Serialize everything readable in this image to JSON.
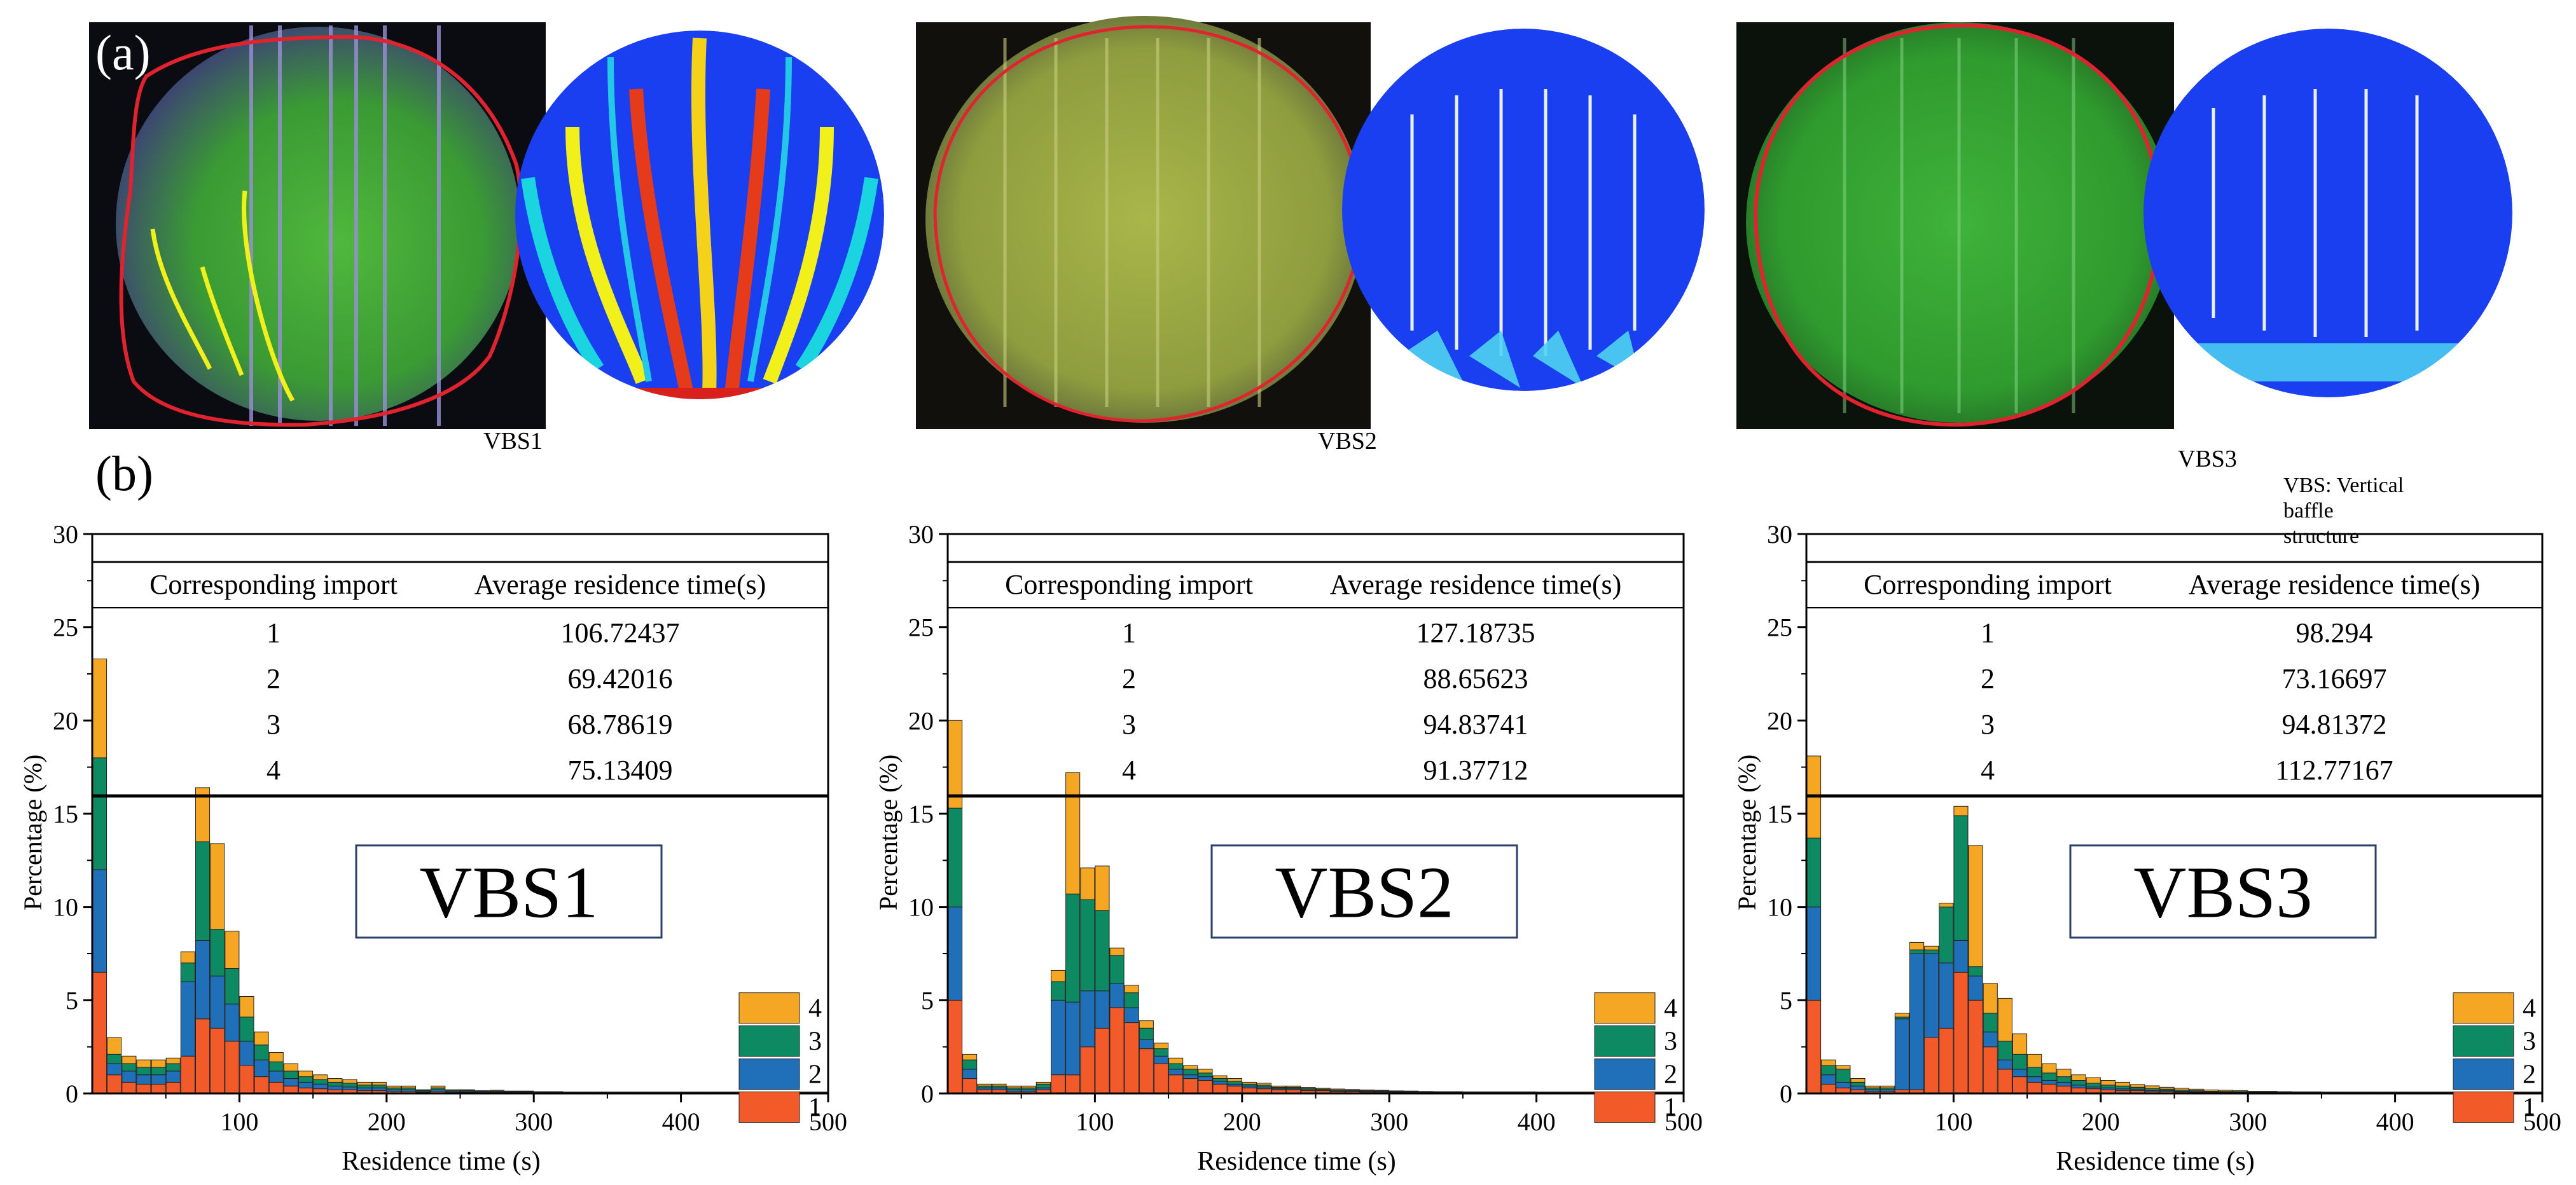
{
  "panel_a_label": "(a)",
  "panel_b_label": "(b)",
  "photo_captions": [
    "VBS1",
    "VBS2",
    "VBS3"
  ],
  "footnote": "VBS: Vertical baffle structure",
  "colors": {
    "series_1": "#f25a29",
    "series_2": "#1f70b8",
    "series_3": "#0e8a63",
    "series_4": "#f5a623",
    "photo_bg": "#0b0b12",
    "photo_green": "#3fae3a",
    "photo_outline_red": "#e0232e",
    "photo_streak_yellow": "#f2f01a",
    "sim_blue": "#1a3ff0"
  },
  "chart_data": [
    {
      "type": "bar",
      "stacked": true,
      "name": "VBS1",
      "box_label": "VBS1",
      "xlabel": "Residence time (s)",
      "ylabel": "Percentage (%)",
      "xlim": [
        0,
        500
      ],
      "ylim": [
        0,
        30
      ],
      "xticks": [
        100,
        200,
        300,
        400,
        500
      ],
      "yticks": [
        0,
        5,
        10,
        15,
        20,
        25,
        30
      ],
      "legend": [
        "4",
        "3",
        "2",
        "1"
      ],
      "legend_position": "bottom-right",
      "table": {
        "headers": [
          "Corresponding import",
          "Average residence time(s)"
        ],
        "rows": [
          [
            "1",
            "106.72437"
          ],
          [
            "2",
            "69.42016"
          ],
          [
            "3",
            "68.78619"
          ],
          [
            "4",
            "75.13409"
          ]
        ]
      },
      "bin_width": 10,
      "x": [
        5,
        15,
        25,
        35,
        45,
        55,
        65,
        75,
        85,
        95,
        105,
        115,
        125,
        135,
        145,
        155,
        165,
        175,
        185,
        195,
        205,
        215,
        225,
        235,
        245,
        255,
        265,
        275,
        285,
        295,
        305,
        315,
        325,
        335,
        345,
        355,
        365,
        375,
        385,
        395,
        405,
        415,
        425,
        435,
        445,
        455,
        465,
        475,
        485,
        495
      ],
      "series": [
        {
          "name": "1",
          "values": [
            6.5,
            1.0,
            0.6,
            0.5,
            0.5,
            0.6,
            2.0,
            4.0,
            3.5,
            2.8,
            1.5,
            0.9,
            0.6,
            0.4,
            0.3,
            0.25,
            0.2,
            0.2,
            0.15,
            0.15,
            0.1,
            0.1,
            0.06,
            0.1,
            0.05,
            0.06,
            0.04,
            0.05,
            0.04,
            0.04,
            0.03,
            0.03,
            0.02,
            0.02,
            0.02,
            0.02,
            0.02,
            0.02,
            0.02,
            0.02,
            0.02,
            0.02,
            0.02,
            0.02,
            0.02,
            0.02,
            0.02,
            0.02,
            0.02,
            0.02
          ]
        },
        {
          "name": "2",
          "values": [
            5.5,
            0.6,
            0.6,
            0.5,
            0.5,
            0.6,
            4.0,
            4.2,
            2.8,
            2.0,
            1.3,
            0.9,
            0.6,
            0.4,
            0.3,
            0.25,
            0.2,
            0.15,
            0.15,
            0.15,
            0.1,
            0.1,
            0.05,
            0.1,
            0.05,
            0.05,
            0.04,
            0.04,
            0.03,
            0.03,
            0.02,
            0.02,
            0.02,
            0.02,
            0.02,
            0.02,
            0.02,
            0.02,
            0.02,
            0.02,
            0.02,
            0.02,
            0.02,
            0.02,
            0.02,
            0.02,
            0.02,
            0.02,
            0.02,
            0.02
          ]
        },
        {
          "name": "3",
          "values": [
            6.0,
            0.5,
            0.4,
            0.4,
            0.4,
            0.4,
            1.0,
            5.3,
            2.5,
            1.9,
            1.3,
            0.8,
            0.5,
            0.4,
            0.3,
            0.25,
            0.2,
            0.2,
            0.15,
            0.15,
            0.1,
            0.1,
            0.05,
            0.1,
            0.05,
            0.05,
            0.04,
            0.04,
            0.03,
            0.03,
            0.02,
            0.02,
            0.02,
            0.02,
            0.02,
            0.02,
            0.02,
            0.02,
            0.02,
            0.02,
            0.02,
            0.02,
            0.02,
            0.02,
            0.02,
            0.02,
            0.02,
            0.02,
            0.02,
            0.02
          ]
        },
        {
          "name": "4",
          "values": [
            5.3,
            0.9,
            0.4,
            0.4,
            0.4,
            0.3,
            0.6,
            2.9,
            4.6,
            2.0,
            1.1,
            0.7,
            0.5,
            0.4,
            0.3,
            0.25,
            0.2,
            0.2,
            0.15,
            0.15,
            0.1,
            0.1,
            0.04,
            0.1,
            0.05,
            0.04,
            0.03,
            0.04,
            0.03,
            0.03,
            0.03,
            0.03,
            0.02,
            0.02,
            0.02,
            0.02,
            0.02,
            0.02,
            0.02,
            0.02,
            0.02,
            0.02,
            0.02,
            0.02,
            0.02,
            0.02,
            0.02,
            0.02,
            0.02,
            0.02
          ]
        }
      ]
    },
    {
      "type": "bar",
      "stacked": true,
      "name": "VBS2",
      "box_label": "VBS2",
      "xlabel": "Residence time (s)",
      "ylabel": "Percentage (%)",
      "xlim": [
        0,
        500
      ],
      "ylim": [
        0,
        30
      ],
      "xticks": [
        100,
        200,
        300,
        400,
        500
      ],
      "yticks": [
        0,
        5,
        10,
        15,
        20,
        25,
        30
      ],
      "legend": [
        "4",
        "3",
        "2",
        "1"
      ],
      "legend_position": "bottom-right",
      "table": {
        "headers": [
          "Corresponding import",
          "Average residence time(s)"
        ],
        "rows": [
          [
            "1",
            "127.18735"
          ],
          [
            "2",
            "88.65623"
          ],
          [
            "3",
            "94.83741"
          ],
          [
            "4",
            "91.37712"
          ]
        ]
      },
      "bin_width": 10,
      "x": [
        5,
        15,
        25,
        35,
        45,
        55,
        65,
        75,
        85,
        95,
        105,
        115,
        125,
        135,
        145,
        155,
        165,
        175,
        185,
        195,
        205,
        215,
        225,
        235,
        245,
        255,
        265,
        275,
        285,
        295,
        305,
        315,
        325,
        335,
        345,
        355,
        365,
        375,
        385,
        395,
        405,
        415,
        425,
        435,
        445,
        455,
        465,
        475,
        485,
        495
      ],
      "series": [
        {
          "name": "1",
          "values": [
            5.0,
            0.8,
            0.2,
            0.2,
            0.1,
            0.1,
            0.2,
            1.0,
            1.0,
            2.5,
            3.5,
            4.6,
            3.8,
            2.4,
            1.6,
            1.0,
            0.8,
            0.7,
            0.5,
            0.4,
            0.3,
            0.25,
            0.2,
            0.2,
            0.15,
            0.15,
            0.1,
            0.1,
            0.08,
            0.08,
            0.06,
            0.05,
            0.05,
            0.04,
            0.04,
            0.03,
            0.03,
            0.03,
            0.03,
            0.03,
            0.02,
            0.02,
            0.02,
            0.02,
            0.02,
            0.02,
            0.02,
            0.02,
            0.02,
            0.02
          ]
        },
        {
          "name": "2",
          "values": [
            5.0,
            0.5,
            0.1,
            0.1,
            0.1,
            0.1,
            0.1,
            4.0,
            3.9,
            3.0,
            2.0,
            1.3,
            0.8,
            0.5,
            0.4,
            0.3,
            0.2,
            0.2,
            0.15,
            0.1,
            0.1,
            0.1,
            0.05,
            0.05,
            0.05,
            0.04,
            0.04,
            0.03,
            0.03,
            0.03,
            0.02,
            0.02,
            0.02,
            0.02,
            0.02,
            0.02,
            0.02,
            0.02,
            0.02,
            0.02,
            0.02,
            0.02,
            0.02,
            0.02,
            0.02,
            0.02,
            0.02,
            0.02,
            0.02,
            0.02
          ]
        },
        {
          "name": "3",
          "values": [
            5.3,
            0.5,
            0.1,
            0.1,
            0.1,
            0.1,
            0.2,
            1.0,
            5.8,
            4.9,
            4.3,
            1.5,
            0.8,
            0.6,
            0.4,
            0.3,
            0.3,
            0.2,
            0.15,
            0.15,
            0.1,
            0.1,
            0.08,
            0.08,
            0.06,
            0.05,
            0.05,
            0.04,
            0.04,
            0.03,
            0.03,
            0.03,
            0.02,
            0.02,
            0.02,
            0.02,
            0.02,
            0.02,
            0.02,
            0.02,
            0.02,
            0.02,
            0.02,
            0.02,
            0.02,
            0.02,
            0.02,
            0.02,
            0.02,
            0.02
          ]
        },
        {
          "name": "4",
          "values": [
            4.7,
            0.3,
            0.1,
            0.1,
            0.1,
            0.1,
            0.1,
            0.6,
            6.5,
            1.7,
            2.4,
            0.4,
            0.4,
            0.4,
            0.3,
            0.3,
            0.2,
            0.2,
            0.15,
            0.15,
            0.1,
            0.1,
            0.07,
            0.07,
            0.06,
            0.05,
            0.05,
            0.04,
            0.04,
            0.03,
            0.03,
            0.03,
            0.02,
            0.02,
            0.02,
            0.02,
            0.02,
            0.02,
            0.02,
            0.02,
            0.02,
            0.02,
            0.02,
            0.02,
            0.02,
            0.02,
            0.02,
            0.02,
            0.02,
            0.02
          ]
        }
      ]
    },
    {
      "type": "bar",
      "stacked": true,
      "name": "VBS3",
      "box_label": "VBS3",
      "xlabel": "Residence time (s)",
      "ylabel": "Percentage (%)",
      "xlim": [
        0,
        500
      ],
      "ylim": [
        0,
        30
      ],
      "xticks": [
        100,
        200,
        300,
        400,
        500
      ],
      "yticks": [
        0,
        5,
        10,
        15,
        20,
        25,
        30
      ],
      "legend": [
        "4",
        "3",
        "2",
        "1"
      ],
      "legend_position": "bottom-right",
      "table": {
        "headers": [
          "Corresponding import",
          "Average residence time(s)"
        ],
        "rows": [
          [
            "1",
            "98.294"
          ],
          [
            "2",
            "73.16697"
          ],
          [
            "3",
            "94.81372"
          ],
          [
            "4",
            "112.77167"
          ]
        ]
      },
      "bin_width": 10,
      "x": [
        5,
        15,
        25,
        35,
        45,
        55,
        65,
        75,
        85,
        95,
        105,
        115,
        125,
        135,
        145,
        155,
        165,
        175,
        185,
        195,
        205,
        215,
        225,
        235,
        245,
        255,
        265,
        275,
        285,
        295,
        305,
        315,
        325,
        335,
        345,
        355,
        365,
        375,
        385,
        395,
        405,
        415,
        425,
        435,
        445,
        455,
        465,
        475,
        485,
        495
      ],
      "series": [
        {
          "name": "1",
          "values": [
            5.0,
            0.5,
            0.3,
            0.2,
            0.1,
            0.1,
            0.2,
            0.2,
            3.0,
            3.5,
            6.5,
            5.0,
            2.5,
            1.3,
            0.9,
            0.6,
            0.5,
            0.4,
            0.3,
            0.25,
            0.2,
            0.15,
            0.15,
            0.1,
            0.1,
            0.08,
            0.06,
            0.05,
            0.04,
            0.04,
            0.03,
            0.03,
            0.03,
            0.02,
            0.02,
            0.02,
            0.02,
            0.02,
            0.02,
            0.02,
            0.02,
            0.02,
            0.02,
            0.02,
            0.02,
            0.02,
            0.02,
            0.02,
            0.02,
            0.02
          ]
        },
        {
          "name": "2",
          "values": [
            5.0,
            0.5,
            0.3,
            0.2,
            0.1,
            0.1,
            3.8,
            7.3,
            4.5,
            3.5,
            1.7,
            1.3,
            0.8,
            0.5,
            0.4,
            0.3,
            0.2,
            0.2,
            0.15,
            0.1,
            0.1,
            0.1,
            0.08,
            0.06,
            0.05,
            0.04,
            0.04,
            0.03,
            0.03,
            0.03,
            0.02,
            0.02,
            0.02,
            0.02,
            0.02,
            0.02,
            0.02,
            0.02,
            0.02,
            0.02,
            0.02,
            0.02,
            0.02,
            0.02,
            0.02,
            0.02,
            0.02,
            0.02,
            0.02,
            0.02
          ]
        },
        {
          "name": "3",
          "values": [
            3.7,
            0.5,
            0.7,
            0.2,
            0.1,
            0.1,
            0.1,
            0.2,
            0.2,
            3.0,
            6.7,
            0.5,
            1.0,
            1.0,
            0.8,
            0.5,
            0.4,
            0.3,
            0.25,
            0.2,
            0.15,
            0.15,
            0.1,
            0.1,
            0.08,
            0.06,
            0.05,
            0.04,
            0.04,
            0.03,
            0.03,
            0.03,
            0.02,
            0.02,
            0.02,
            0.02,
            0.02,
            0.02,
            0.02,
            0.02,
            0.02,
            0.02,
            0.02,
            0.02,
            0.02,
            0.02,
            0.02,
            0.02,
            0.02,
            0.02
          ]
        },
        {
          "name": "4",
          "values": [
            4.4,
            0.3,
            0.2,
            0.2,
            0.1,
            0.1,
            0.2,
            0.4,
            0.2,
            0.2,
            0.5,
            6.5,
            1.6,
            2.3,
            1.1,
            0.7,
            0.5,
            0.4,
            0.3,
            0.3,
            0.25,
            0.2,
            0.15,
            0.15,
            0.1,
            0.1,
            0.08,
            0.07,
            0.06,
            0.05,
            0.04,
            0.04,
            0.03,
            0.03,
            0.03,
            0.02,
            0.02,
            0.02,
            0.02,
            0.02,
            0.02,
            0.02,
            0.02,
            0.02,
            0.02,
            0.02,
            0.02,
            0.02,
            0.02,
            0.02
          ]
        }
      ]
    }
  ]
}
